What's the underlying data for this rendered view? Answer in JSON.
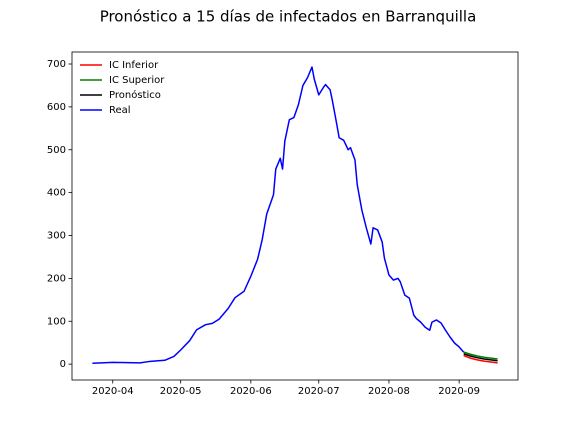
{
  "chart_data": {
    "type": "line",
    "title": "Pronóstico a 15 días de infectados en Barranquilla",
    "xlim": [
      74,
      271
    ],
    "xticks": [
      {
        "value": 92,
        "label": "2020-04"
      },
      {
        "value": 122,
        "label": "2020-05"
      },
      {
        "value": 153,
        "label": "2020-06"
      },
      {
        "value": 183,
        "label": "2020-07"
      },
      {
        "value": 214,
        "label": "2020-08"
      },
      {
        "value": 245,
        "label": "2020-09"
      }
    ],
    "ylim": [
      -37,
      728
    ],
    "yticks": [
      0,
      100,
      200,
      300,
      400,
      500,
      600,
      700
    ],
    "legend": "upper left",
    "series": [
      {
        "name": "IC Inferior",
        "color": "#ff0000",
        "x": [
          247,
          250,
          253,
          256,
          259,
          262
        ],
        "values": [
          20,
          14,
          10,
          7,
          5,
          3
        ]
      },
      {
        "name": "IC Superior",
        "color": "#008000",
        "x": [
          247,
          250,
          253,
          256,
          259,
          262
        ],
        "values": [
          28,
          23,
          19,
          16,
          14,
          12
        ]
      },
      {
        "name": "Pronóstico",
        "color": "#000000",
        "x": [
          247,
          250,
          253,
          256,
          259,
          262
        ],
        "values": [
          24,
          19,
          15,
          12,
          10,
          8
        ]
      },
      {
        "name": "Real",
        "color": "#0000ff",
        "x": [
          83,
          92,
          104,
          108,
          115,
          119,
          122,
          126,
          129,
          133,
          136,
          139,
          143,
          146,
          150,
          153,
          156,
          158,
          160,
          163,
          164,
          166,
          167,
          168,
          170,
          172,
          174,
          176,
          178,
          180,
          181,
          183,
          185,
          186,
          188,
          189,
          191,
          192,
          194,
          196,
          197,
          199,
          200,
          202,
          204,
          206,
          207,
          209,
          211,
          212,
          214,
          216,
          218,
          219,
          221,
          223,
          225,
          226,
          228,
          230,
          232,
          233,
          235,
          237,
          239,
          241,
          243,
          245,
          247
        ],
        "values": [
          2,
          4,
          3,
          6,
          9,
          18,
          33,
          55,
          80,
          92,
          95,
          105,
          130,
          155,
          170,
          205,
          245,
          290,
          350,
          395,
          455,
          480,
          455,
          520,
          570,
          575,
          605,
          650,
          668,
          693,
          665,
          628,
          645,
          652,
          640,
          615,
          558,
          528,
          522,
          500,
          505,
          476,
          418,
          360,
          318,
          280,
          318,
          313,
          285,
          247,
          208,
          196,
          200,
          192,
          161,
          154,
          114,
          107,
          98,
          86,
          79,
          98,
          103,
          96,
          79,
          63,
          49,
          40,
          28
        ]
      }
    ]
  }
}
